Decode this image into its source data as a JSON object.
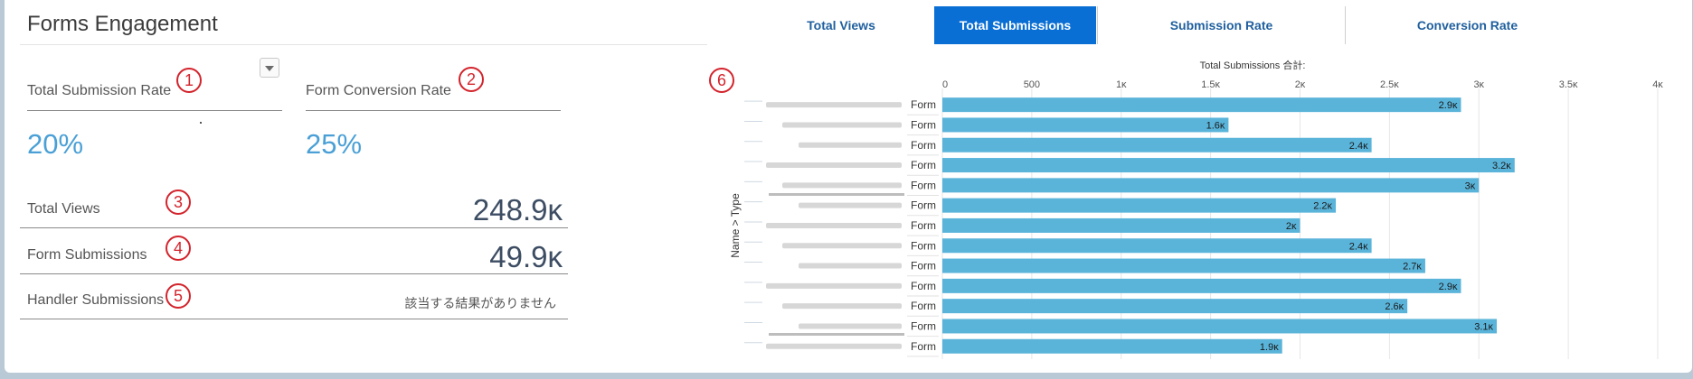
{
  "panel": {
    "title": "Forms Engagement",
    "kpis": [
      {
        "label": "Total Submission Rate",
        "value": "20%",
        "marker": "1"
      },
      {
        "label": "Form Conversion Rate",
        "value": "25%",
        "marker": "2"
      }
    ],
    "rows": [
      {
        "label": "Total Views",
        "value": "248.9ĸ",
        "marker": "3"
      },
      {
        "label": "Form Submissions",
        "value": "49.9ĸ",
        "marker": "4"
      },
      {
        "label": "Handler Submissions",
        "value": "該当する結果がありません",
        "marker": "5"
      }
    ],
    "chart_marker": "6"
  },
  "tabs": [
    {
      "label": "Total Views",
      "active": false
    },
    {
      "label": "Total Submissions",
      "active": true
    },
    {
      "label": "Submission Rate",
      "active": false
    },
    {
      "label": "Conversion Rate",
      "active": false
    }
  ],
  "colors": {
    "bar": "#5ab4da",
    "accent": "#0a6fd4",
    "marker": "#d3242c",
    "kpi": "#4aa0d6"
  },
  "chart_data": {
    "type": "bar",
    "orientation": "horizontal",
    "title": "Total Submissions 合計:",
    "ylabel": "Name > Type",
    "xlim": [
      0,
      4000
    ],
    "ticks": [
      {
        "v": 0,
        "label": "0"
      },
      {
        "v": 500,
        "label": "500"
      },
      {
        "v": 1000,
        "label": "1ĸ"
      },
      {
        "v": 1500,
        "label": "1.5ĸ"
      },
      {
        "v": 2000,
        "label": "2ĸ"
      },
      {
        "v": 2500,
        "label": "2.5ĸ"
      },
      {
        "v": 3000,
        "label": "3ĸ"
      },
      {
        "v": 3500,
        "label": "3.5ĸ"
      },
      {
        "v": 4000,
        "label": "4ĸ"
      }
    ],
    "grid": true,
    "categories": [
      "Form",
      "Form",
      "Form",
      "Form",
      "Form",
      "Form",
      "Form",
      "Form",
      "Form",
      "Form",
      "Form",
      "Form",
      "Form"
    ],
    "values": [
      2900,
      1600,
      2400,
      3200,
      3000,
      2200,
      2000,
      2400,
      2700,
      2900,
      2600,
      3100,
      1900
    ],
    "value_labels": [
      "2.9ĸ",
      "1.6ĸ",
      "2.4ĸ",
      "3.2ĸ",
      "3ĸ",
      "2.2ĸ",
      "2ĸ",
      "2.4ĸ",
      "2.7ĸ",
      "2.9ĸ",
      "2.6ĸ",
      "3.1ĸ",
      "1.9ĸ"
    ]
  }
}
